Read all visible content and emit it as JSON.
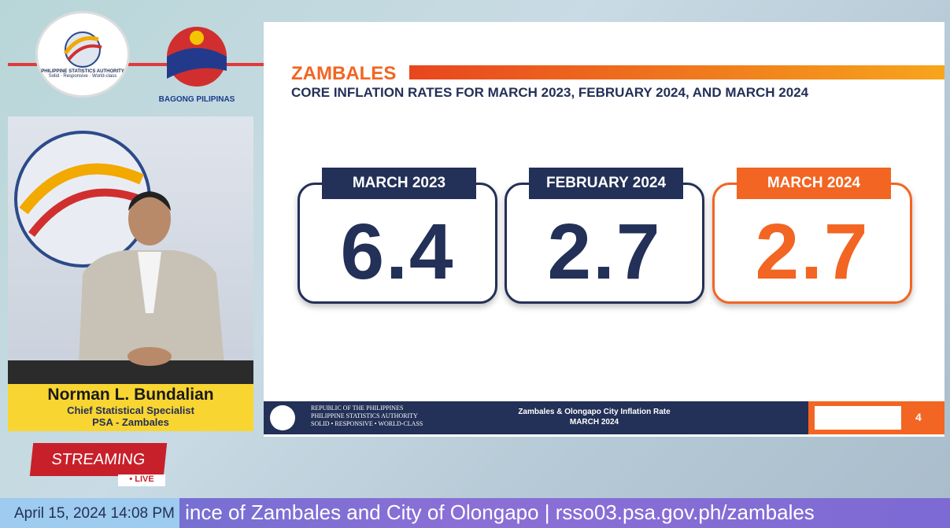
{
  "header": {
    "logo_text": "PHILIPPINE STATISTICS AUTHORITY",
    "logo_motto": "Solid · Responsive · World-class",
    "brand": "BAGONG PILIPINAS"
  },
  "presenter": {
    "name": "Norman L. Bundalian",
    "role": "Chief Statistical Specialist",
    "office": "PSA - Zambales"
  },
  "stream": {
    "label": "STREAMING",
    "live": "LIVE"
  },
  "ticker": {
    "datetime": "April 15, 2024 14:08 PM",
    "text": "ince of Zambales and City of Olongapo | rsso03.psa.gov.ph/zambales"
  },
  "slide": {
    "title": "ZAMBALES",
    "subtitle": "CORE INFLATION RATES FOR MARCH 2023, FEBRUARY 2024, AND MARCH 2024",
    "cards": [
      {
        "label": "MARCH 2023",
        "value": 6.4
      },
      {
        "label": "FEBRUARY 2024",
        "value": 2.7
      },
      {
        "label": "MARCH 2024",
        "value": 2.7
      }
    ],
    "footer": {
      "line1": "REPUBLIC OF THE PHILIPPINES",
      "line2": "PHILIPPINE STATISTICS AUTHORITY",
      "line3": "SOLID • RESPONSIVE • WORLD-CLASS",
      "center_title": "Zambales & Olongapo City Inflation Rate",
      "center_sub": "MARCH 2024",
      "page": "4"
    }
  }
}
